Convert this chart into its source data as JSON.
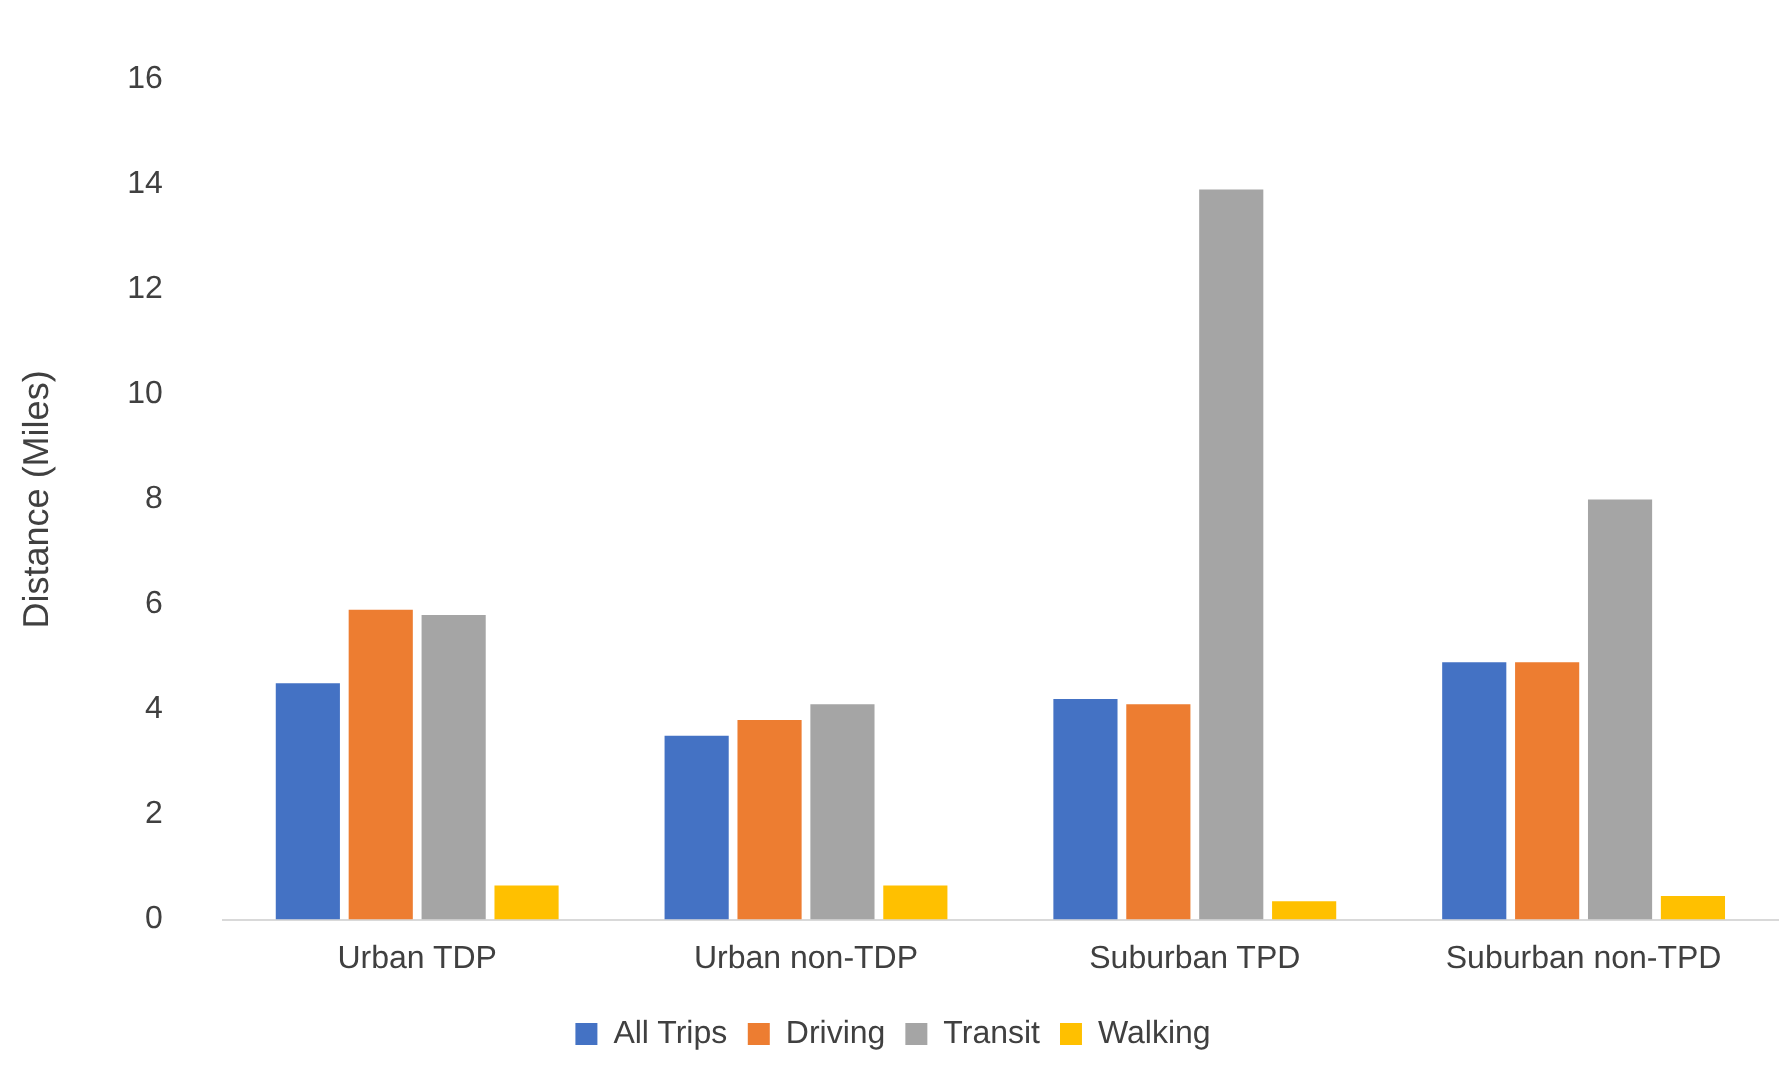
{
  "chart_data": {
    "type": "bar",
    "ylabel": "Distance (Miles)",
    "categories": [
      "Urban TDP",
      "Urban non-TDP",
      "Suburban TPD",
      "Suburban non-TPD"
    ],
    "series": [
      {
        "name": "All Trips",
        "color": "#4472c4",
        "values": [
          4.5,
          3.5,
          4.2,
          4.9
        ]
      },
      {
        "name": "Driving",
        "color": "#ed7d31",
        "values": [
          5.9,
          3.8,
          4.1,
          4.9
        ]
      },
      {
        "name": "Transit",
        "color": "#a5a5a5",
        "values": [
          5.8,
          4.1,
          13.9,
          8.0
        ]
      },
      {
        "name": "Walking",
        "color": "#ffc000",
        "values": [
          0.65,
          0.65,
          0.35,
          0.45
        ]
      }
    ],
    "ylim": [
      0,
      16
    ],
    "yticks": [
      0,
      2,
      4,
      6,
      8,
      10,
      12,
      14,
      16
    ],
    "grid": false,
    "legend": "bottom"
  }
}
